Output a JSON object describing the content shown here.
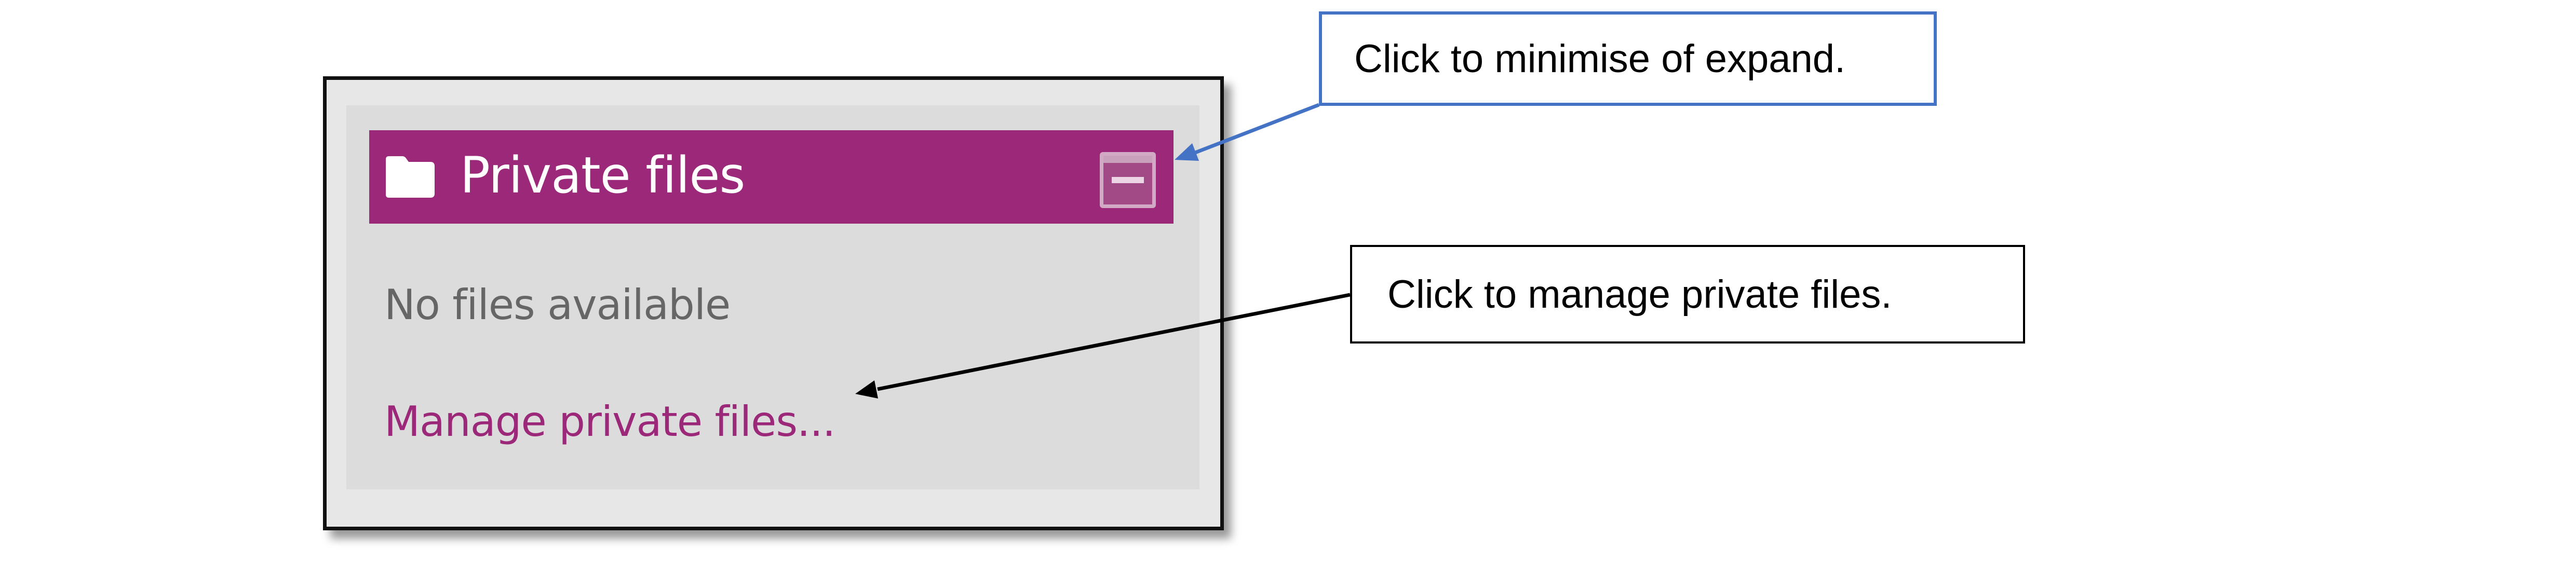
{
  "block": {
    "title": "Private files",
    "empty_message": "No files available",
    "manage_link": "Manage private files...",
    "header_color": "#9b2878",
    "link_color": "#9b2878",
    "icons": {
      "folder": "folder-icon",
      "collapse": "minimise-icon"
    }
  },
  "callouts": {
    "minimise": {
      "text": "Click to minimise of expand.",
      "border_color": "#4472c4"
    },
    "manage": {
      "text": "Click to manage private files.",
      "border_color": "#000000"
    }
  }
}
